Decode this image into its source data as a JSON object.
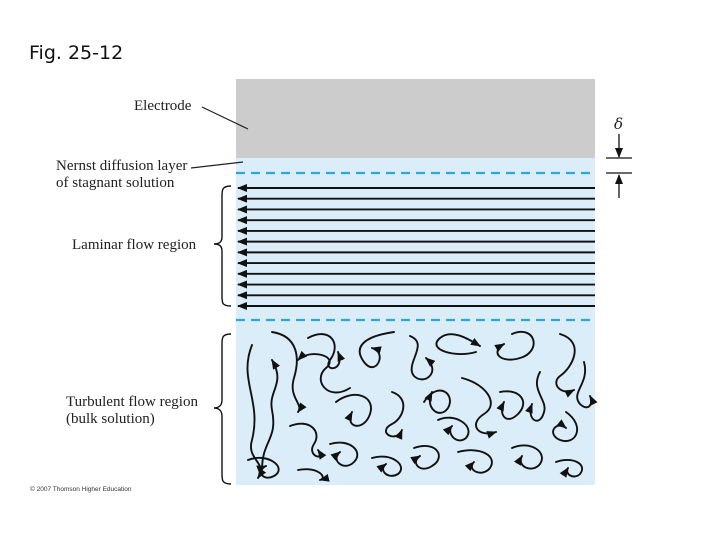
{
  "figure": {
    "title": "Fig. 25-12",
    "copyright": "© 2007 Thomson Higher Education"
  },
  "labels": {
    "electrode": "Electrode",
    "nernst_line1": "Nernst diffusion layer",
    "nernst_line2": "of stagnant solution",
    "laminar": "Laminar flow region",
    "turbulent_line1": "Turbulent flow region",
    "turbulent_line2": "(bulk solution)",
    "delta": "δ"
  },
  "colors": {
    "electrode": "#cccccc",
    "solution": "#dcedfa",
    "boundary_dash": "#2aa7e0",
    "arrows": "#111111"
  },
  "diagram": {
    "laminar_arrow_count": 12,
    "laminar_arrow_direction": "left",
    "turbulent_arrows": "random curled arrows"
  }
}
